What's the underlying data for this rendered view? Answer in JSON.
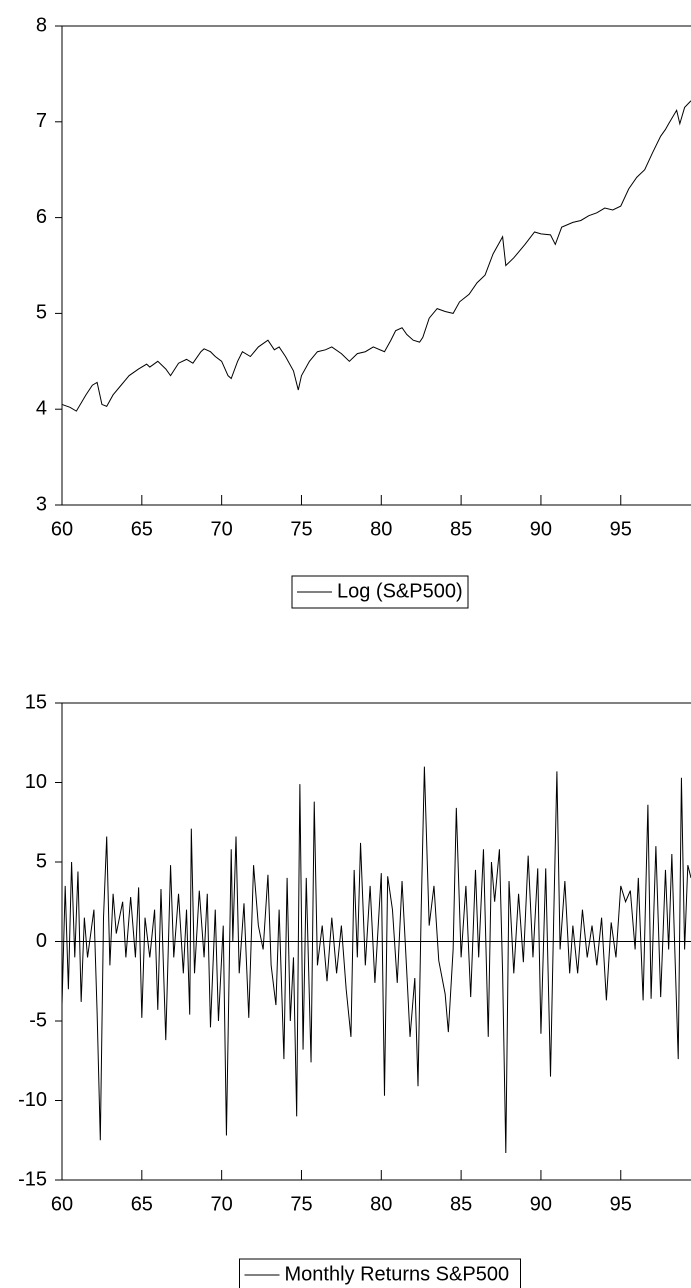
{
  "chart_data": [
    {
      "type": "line",
      "x": [
        60.0,
        60.5,
        60.9,
        61.5,
        61.9,
        62.2,
        62.5,
        62.8,
        63.2,
        63.7,
        64.2,
        64.8,
        65.3,
        65.5,
        66.0,
        66.5,
        66.8,
        67.3,
        67.8,
        68.2,
        68.7,
        68.9,
        69.3,
        69.6,
        70.0,
        70.4,
        70.6,
        71.0,
        71.3,
        71.8,
        72.3,
        72.9,
        73.3,
        73.6,
        74.0,
        74.5,
        74.8,
        75.0,
        75.5,
        76.0,
        76.5,
        76.9,
        77.5,
        78.0,
        78.5,
        79.0,
        79.5,
        80.2,
        80.6,
        80.9,
        81.3,
        81.6,
        82.0,
        82.4,
        82.6,
        83.0,
        83.5,
        84.0,
        84.5,
        84.9,
        85.5,
        86.0,
        86.5,
        87.0,
        87.6,
        87.8,
        88.3,
        89.0,
        89.6,
        90.0,
        90.6,
        90.9,
        91.3,
        92.0,
        92.5,
        93.0,
        93.5,
        94.0,
        94.5,
        95.0,
        95.5,
        96.0,
        96.5,
        97.0,
        97.5,
        97.8,
        98.0,
        98.5,
        98.7,
        99.0,
        99.4
      ],
      "series": [
        {
          "name": "Log (S&P500)",
          "color": "#000000",
          "values": [
            4.05,
            4.02,
            3.98,
            4.15,
            4.25,
            4.28,
            4.05,
            4.03,
            4.15,
            4.25,
            4.35,
            4.42,
            4.47,
            4.44,
            4.5,
            4.42,
            4.35,
            4.48,
            4.52,
            4.48,
            4.6,
            4.63,
            4.6,
            4.55,
            4.5,
            4.35,
            4.32,
            4.5,
            4.6,
            4.55,
            4.65,
            4.72,
            4.62,
            4.65,
            4.55,
            4.4,
            4.2,
            4.35,
            4.5,
            4.6,
            4.62,
            4.65,
            4.58,
            4.5,
            4.58,
            4.6,
            4.65,
            4.6,
            4.72,
            4.82,
            4.85,
            4.78,
            4.72,
            4.7,
            4.75,
            4.95,
            5.05,
            5.02,
            5.0,
            5.12,
            5.2,
            5.32,
            5.4,
            5.62,
            5.8,
            5.5,
            5.58,
            5.72,
            5.85,
            5.83,
            5.82,
            5.72,
            5.9,
            5.95,
            5.97,
            6.02,
            6.05,
            6.1,
            6.08,
            6.12,
            6.3,
            6.42,
            6.5,
            6.68,
            6.85,
            6.92,
            6.98,
            7.12,
            6.98,
            7.15,
            7.22
          ]
        }
      ],
      "xlim": [
        60,
        99.4
      ],
      "xticks": [
        60,
        65,
        70,
        75,
        80,
        85,
        90,
        95
      ],
      "ylim": [
        3,
        8
      ],
      "yticks": [
        3,
        4,
        5,
        6,
        7,
        8
      ]
    },
    {
      "type": "line",
      "x": [
        60.0,
        60.2,
        60.4,
        60.6,
        60.8,
        61.0,
        61.2,
        61.4,
        61.6,
        62.0,
        62.2,
        62.4,
        62.6,
        62.8,
        63.0,
        63.2,
        63.4,
        63.8,
        64.0,
        64.3,
        64.6,
        64.8,
        65.0,
        65.2,
        65.5,
        65.8,
        66.0,
        66.2,
        66.5,
        66.8,
        67.0,
        67.3,
        67.6,
        67.8,
        68.0,
        68.1,
        68.3,
        68.6,
        68.9,
        69.1,
        69.3,
        69.6,
        69.8,
        70.1,
        70.3,
        70.6,
        70.7,
        70.9,
        71.1,
        71.4,
        71.7,
        72.0,
        72.3,
        72.6,
        72.9,
        73.1,
        73.4,
        73.6,
        73.9,
        74.1,
        74.3,
        74.5,
        74.7,
        74.9,
        75.1,
        75.3,
        75.6,
        75.8,
        76.0,
        76.3,
        76.6,
        76.9,
        77.2,
        77.5,
        77.8,
        78.1,
        78.3,
        78.5,
        78.7,
        79.0,
        79.3,
        79.6,
        80.0,
        80.2,
        80.4,
        80.7,
        81.0,
        81.3,
        81.6,
        81.8,
        82.1,
        82.3,
        82.5,
        82.7,
        83.0,
        83.3,
        83.6,
        84.0,
        84.2,
        84.5,
        84.7,
        85.0,
        85.3,
        85.6,
        85.9,
        86.1,
        86.4,
        86.7,
        86.9,
        87.1,
        87.4,
        87.6,
        87.8,
        88.0,
        88.3,
        88.6,
        88.9,
        89.2,
        89.5,
        89.8,
        90.0,
        90.3,
        90.6,
        90.8,
        91.0,
        91.2,
        91.5,
        91.8,
        92.0,
        92.3,
        92.6,
        92.9,
        93.2,
        93.5,
        93.8,
        94.1,
        94.4,
        94.7,
        95.0,
        95.3,
        95.6,
        95.9,
        96.1,
        96.4,
        96.7,
        96.9,
        97.2,
        97.5,
        97.8,
        98.0,
        98.2,
        98.4,
        98.6,
        98.8,
        99.0,
        99.2,
        99.4
      ],
      "series": [
        {
          "name": "Monthly Returns S&P500",
          "color": "#000000",
          "values": [
            -4,
            3.5,
            -3,
            5,
            -1,
            4.4,
            -3.8,
            1.5,
            -1,
            2,
            -4.5,
            -12.5,
            1.5,
            6.6,
            -1.5,
            3,
            0.5,
            2.5,
            -1,
            2.8,
            -1,
            3.4,
            -4.8,
            1.5,
            -1,
            2,
            -4.3,
            3.3,
            -6.2,
            4.8,
            -1,
            3,
            -2,
            2,
            -4.6,
            7.1,
            -2,
            3.2,
            -1,
            3,
            -5.4,
            2,
            -5,
            1,
            -12.2,
            5.8,
            0,
            6.6,
            -2,
            2.4,
            -4.8,
            4.8,
            1,
            -0.5,
            4.2,
            -1.5,
            -4,
            2,
            -7.4,
            4,
            -5,
            -1,
            -11,
            9.9,
            -6.8,
            4,
            -7.6,
            8.8,
            -1.5,
            1,
            -2.5,
            1.5,
            -2,
            1,
            -3,
            -6,
            4.5,
            -1,
            6.2,
            -1.5,
            3.5,
            -2.6,
            4.3,
            -9.7,
            4.1,
            2,
            -2.6,
            3.8,
            -2,
            -6,
            -2.3,
            -9.1,
            2,
            11.0,
            1,
            3.5,
            -1.2,
            -3.3,
            -5.7,
            -0.5,
            8.4,
            -1,
            3.5,
            -3.5,
            4.5,
            -1,
            5.8,
            -6,
            5,
            2.5,
            5.8,
            -2,
            -13.3,
            3.8,
            -2,
            3,
            -1.3,
            5.4,
            -1,
            4.6,
            -5.8,
            4.6,
            -8.5,
            1.5,
            10.7,
            -0.5,
            3.8,
            -2,
            1,
            -2,
            2,
            -1,
            1,
            -1.5,
            1.5,
            -3.7,
            1.2,
            -1,
            3.5,
            2.5,
            3.2,
            -0.5,
            4,
            -3.7,
            8.6,
            -3.6,
            6,
            -3.5,
            4.5,
            -0.5,
            5.5,
            -1,
            -7.4,
            10.3,
            -0.5,
            4.8,
            4
          ]
        }
      ],
      "xlim": [
        60,
        99.4
      ],
      "xticks": [
        60,
        65,
        70,
        75,
        80,
        85,
        90,
        95
      ],
      "ylim": [
        -15,
        15
      ],
      "yticks": [
        -15,
        -10,
        -5,
        0,
        5,
        10,
        15
      ],
      "zero_line": true
    }
  ]
}
